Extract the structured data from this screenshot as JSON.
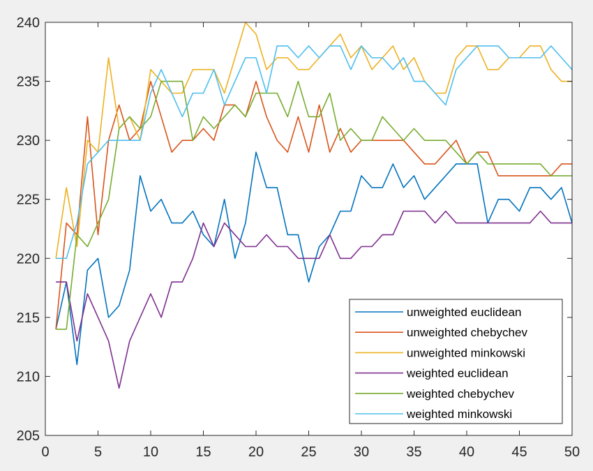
{
  "chart_data": {
    "type": "line",
    "title": "",
    "xlabel": "",
    "ylabel": "",
    "xlim": [
      0,
      50
    ],
    "ylim": [
      205,
      240
    ],
    "x_ticks": [
      0,
      5,
      10,
      15,
      20,
      25,
      30,
      35,
      40,
      45,
      50
    ],
    "y_ticks": [
      205,
      210,
      215,
      220,
      225,
      230,
      235,
      240
    ],
    "grid": false,
    "legend_position": "bottom-right",
    "x": [
      1,
      2,
      3,
      4,
      5,
      6,
      7,
      8,
      9,
      10,
      11,
      12,
      13,
      14,
      15,
      16,
      17,
      18,
      19,
      20,
      21,
      22,
      23,
      24,
      25,
      26,
      27,
      28,
      29,
      30,
      31,
      32,
      33,
      34,
      35,
      36,
      37,
      38,
      39,
      40,
      41,
      42,
      43,
      44,
      45,
      46,
      47,
      48,
      49,
      50
    ],
    "series": [
      {
        "name": "unweighted euclidean",
        "color": "#0072BD",
        "values": [
          214,
          218,
          211,
          219,
          220,
          215,
          216,
          219,
          227,
          224,
          225,
          223,
          223,
          224,
          222,
          221,
          225,
          220,
          223,
          229,
          226,
          226,
          222,
          222,
          218,
          221,
          222,
          224,
          224,
          227,
          226,
          226,
          228,
          226,
          227,
          225,
          226,
          227,
          228,
          228,
          228,
          223,
          225,
          225,
          224,
          226,
          226,
          225,
          226,
          223
        ]
      },
      {
        "name": "unweighted chebychev",
        "color": "#D95319",
        "values": [
          214,
          223,
          222,
          232,
          222,
          230,
          233,
          230,
          231,
          235,
          232,
          229,
          230,
          230,
          231,
          230,
          233,
          233,
          232,
          235,
          232,
          230,
          229,
          232,
          229,
          233,
          229,
          231,
          229,
          230,
          230,
          230,
          230,
          230,
          229,
          228,
          228,
          229,
          230,
          228,
          229,
          229,
          227,
          227,
          227,
          227,
          227,
          227,
          228,
          228
        ]
      },
      {
        "name": "unweighted minkowski",
        "color": "#EDB120",
        "values": [
          220,
          226,
          221,
          230,
          229,
          237,
          231,
          232,
          230,
          236,
          235,
          234,
          234,
          236,
          236,
          236,
          234,
          237,
          240,
          239,
          236,
          237,
          237,
          236,
          236,
          237,
          238,
          239,
          237,
          238,
          236,
          237,
          238,
          236,
          237,
          235,
          234,
          234,
          237,
          238,
          238,
          236,
          236,
          237,
          237,
          238,
          238,
          236,
          235,
          235
        ]
      },
      {
        "name": "weighted euclidean",
        "color": "#7E2F8E",
        "values": [
          218,
          218,
          213,
          217,
          215,
          213,
          209,
          213,
          215,
          217,
          215,
          218,
          218,
          220,
          223,
          221,
          223,
          222,
          221,
          221,
          222,
          221,
          221,
          220,
          220,
          220,
          222,
          220,
          220,
          221,
          221,
          222,
          222,
          224,
          224,
          224,
          223,
          224,
          223,
          223,
          223,
          223,
          223,
          223,
          223,
          223,
          224,
          223,
          223,
          223
        ]
      },
      {
        "name": "weighted chebychev",
        "color": "#77AC30",
        "values": [
          214,
          214,
          222,
          221,
          223,
          225,
          231,
          232,
          231,
          232,
          235,
          235,
          235,
          230,
          232,
          231,
          232,
          233,
          232,
          234,
          234,
          234,
          232,
          235,
          232,
          232,
          234,
          230,
          231,
          230,
          230,
          232,
          231,
          230,
          231,
          230,
          230,
          230,
          229,
          228,
          229,
          228,
          228,
          228,
          228,
          228,
          228,
          227,
          227,
          227
        ]
      },
      {
        "name": "weighted minkowski",
        "color": "#4DBEEE",
        "values": [
          220,
          220,
          223,
          228,
          229,
          230,
          230,
          230,
          230,
          234,
          236,
          234,
          232,
          234,
          234,
          236,
          233,
          235,
          237,
          237,
          234,
          238,
          238,
          237,
          238,
          237,
          238,
          238,
          236,
          238,
          237,
          237,
          236,
          237,
          235,
          235,
          234,
          233,
          236,
          237,
          238,
          238,
          238,
          237,
          237,
          237,
          237,
          238,
          237,
          236
        ]
      }
    ]
  }
}
